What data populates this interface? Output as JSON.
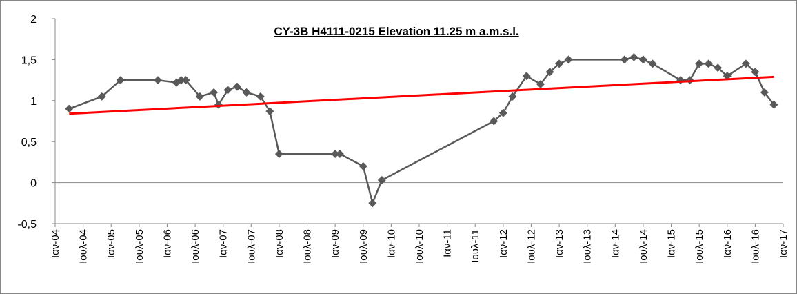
{
  "chart_data": {
    "type": "line",
    "title": "CY-3B H4111-0215 Elevation 11.25 m a.m.s.l.",
    "xlim": [
      "2004-01",
      "2017-01"
    ],
    "xticks": [
      {
        "value": "2004-01",
        "label": "Ιαν-04"
      },
      {
        "value": "2004-07",
        "label": "Ιουλ-04"
      },
      {
        "value": "2005-01",
        "label": "Ιαν-05"
      },
      {
        "value": "2005-07",
        "label": "Ιουλ-05"
      },
      {
        "value": "2006-01",
        "label": "Ιαν-06"
      },
      {
        "value": "2006-07",
        "label": "Ιουλ-06"
      },
      {
        "value": "2007-01",
        "label": "Ιαν-07"
      },
      {
        "value": "2007-07",
        "label": "Ιουλ-07"
      },
      {
        "value": "2008-01",
        "label": "Ιαν-08"
      },
      {
        "value": "2008-07",
        "label": "Ιουλ-08"
      },
      {
        "value": "2009-01",
        "label": "Ιαν-09"
      },
      {
        "value": "2009-07",
        "label": "Ιουλ-09"
      },
      {
        "value": "2010-01",
        "label": "Ιαν-10"
      },
      {
        "value": "2010-07",
        "label": "Ιουλ-10"
      },
      {
        "value": "2011-01",
        "label": "Ιαν-11"
      },
      {
        "value": "2011-07",
        "label": "Ιουλ-11"
      },
      {
        "value": "2012-01",
        "label": "Ιαν-12"
      },
      {
        "value": "2012-07",
        "label": "Ιουλ-12"
      },
      {
        "value": "2013-01",
        "label": "Ιαν-13"
      },
      {
        "value": "2013-07",
        "label": "Ιουλ-13"
      },
      {
        "value": "2014-01",
        "label": "Ιαν-14"
      },
      {
        "value": "2014-07",
        "label": "Ιουλ-14"
      },
      {
        "value": "2015-01",
        "label": "Ιαν-15"
      },
      {
        "value": "2015-07",
        "label": "Ιουλ-15"
      },
      {
        "value": "2016-01",
        "label": "Ιαν-16"
      },
      {
        "value": "2016-07",
        "label": "Ιουλ-16"
      },
      {
        "value": "2017-01",
        "label": "Ιαν-17"
      }
    ],
    "ylim": [
      -0.5,
      2
    ],
    "yticks": [
      {
        "value": -0.5,
        "label": "-0,5"
      },
      0,
      {
        "value": 0.5,
        "label": "0,5"
      },
      1,
      {
        "value": 1.5,
        "label": "1,5"
      },
      2
    ],
    "zero_line": true,
    "series": [
      {
        "color": "#595959",
        "marker": "diamond",
        "x": [
          "2004-04",
          "2004-11",
          "2005-03",
          "2005-11",
          "2006-03",
          "2006-04",
          "2006-05",
          "2006-08",
          "2006-11",
          "2006-12",
          "2007-02",
          "2007-04",
          "2007-06",
          "2007-09",
          "2007-11",
          "2008-01",
          "2009-01",
          "2009-02",
          "2009-07",
          "2009-09",
          "2009-11",
          "2011-11",
          "2012-01",
          "2012-03",
          "2012-06",
          "2012-09",
          "2012-11",
          "2013-01",
          "2013-03",
          "2014-03",
          "2014-05",
          "2014-07",
          "2014-09",
          "2015-03",
          "2015-05",
          "2015-07",
          "2015-09",
          "2015-11",
          "2016-01",
          "2016-05",
          "2016-07",
          "2016-09",
          "2016-11"
        ],
        "values": [
          0.9,
          1.05,
          1.25,
          1.25,
          1.22,
          1.25,
          1.25,
          1.05,
          1.1,
          0.95,
          1.13,
          1.17,
          1.1,
          1.05,
          0.87,
          0.35,
          0.35,
          0.35,
          0.2,
          -0.25,
          0.03,
          0.75,
          0.85,
          1.05,
          1.3,
          1.2,
          1.35,
          1.45,
          1.5,
          1.5,
          1.53,
          1.5,
          1.45,
          1.25,
          1.25,
          1.45,
          1.45,
          1.4,
          1.3,
          1.45,
          1.35,
          1.1,
          0.95
        ]
      },
      {
        "color": "#ff0000",
        "marker": "none",
        "x": [
          "2004-04",
          "2016-11"
        ],
        "values": [
          0.84,
          1.29
        ]
      }
    ]
  }
}
